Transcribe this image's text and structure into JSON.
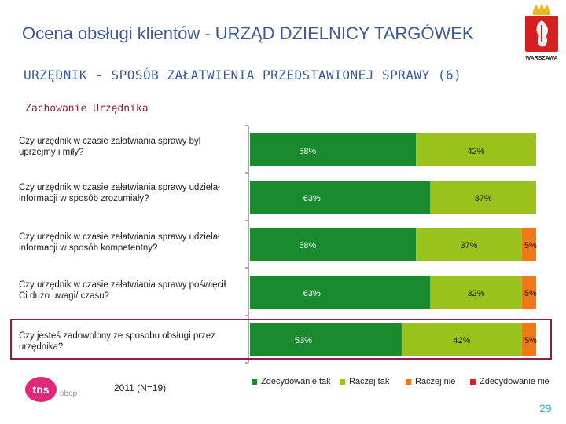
{
  "header": {
    "title": "Ocena obsługi klientów - URZĄD DZIELNICY TARGÓWEK",
    "subtitle": "URZĘDNIK - SPOSÓB ZAŁATWIENIA PRZEDSTAWIONEJ SPRAWY (6)",
    "section": "Zachowanie Urzędnika",
    "logo_text": "WARSZAWA"
  },
  "footer": {
    "sample": "2011 (N=19)",
    "page_number": "29",
    "brand_tns": "tns",
    "brand_obop": "obop"
  },
  "colors": {
    "title": "#3a5a9a",
    "zdecydowanie_tak": "#1a8a2e",
    "raczej_tak": "#99c21c",
    "raczej_nie": "#f07818",
    "zdecydowanie_nie": "#e02020",
    "highlight_border": "#8a1f4a"
  },
  "chart_data": {
    "type": "bar",
    "orientation": "horizontal-stacked-100",
    "categories": [
      "Czy urzędnik w czasie załatwiania sprawy był uprzejmy i miły?",
      "Czy urzędnik w czasie załatwiania sprawy udzielał informacji w sposób zrozumiały?",
      "Czy urzędnik w czasie załatwiania sprawy udzielał informacji w sposób kompetentny?",
      "Czy urzędnik w czasie załatwiania sprawy poświęcił Ci dużo uwagi/ czasu?",
      "Czy jesteś zadowolony ze sposobu obsługi przez urzędnika?"
    ],
    "series": [
      {
        "name": "Zdecydowanie tak",
        "values": [
          58,
          63,
          58,
          63,
          53
        ]
      },
      {
        "name": "Raczej tak",
        "values": [
          42,
          37,
          37,
          32,
          42
        ]
      },
      {
        "name": "Raczej nie",
        "values": [
          0,
          0,
          5,
          5,
          5
        ]
      },
      {
        "name": "Zdecydowanie nie",
        "values": [
          0,
          0,
          0,
          0,
          0
        ]
      }
    ],
    "value_suffix": "%",
    "highlighted_category_index": 4,
    "xlim": [
      0,
      100
    ]
  }
}
